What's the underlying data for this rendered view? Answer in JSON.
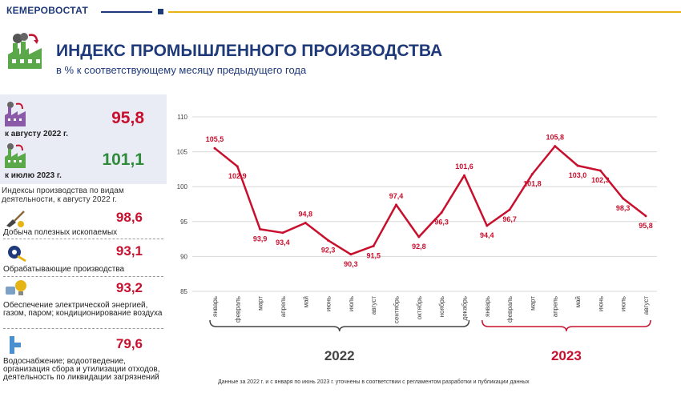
{
  "brand": "КЕМЕРОВОСТАТ",
  "title": "ИНДЕКС ПРОМЫШЛЕННОГО ПРОИЗВОДСТВА",
  "subtitle": "в % к соответствующему месяцу предыдущего года",
  "summary": [
    {
      "label": "к августу 2022 г.",
      "value": "95,8",
      "color": "#c8102e"
    },
    {
      "label": "к июлю 2023 г.",
      "value": "101,1",
      "color": "#2e8b3a"
    }
  ],
  "sectors_note": "Индексы производства по видам деятельности, к августу 2022 г.",
  "sectors": [
    {
      "icon": "mining-shovel-icon",
      "label": "Добыча полезных ископаемых",
      "value": "98,6"
    },
    {
      "icon": "gear-wrench-icon",
      "label": "Обрабатывающие производства",
      "value": "93,1"
    },
    {
      "icon": "lightbulb-gas-icon",
      "label": "Обеспечение электрической энергией, газом, паром; кондиционирование воздуха",
      "value": "93,2"
    },
    {
      "icon": "water-pipe-icon",
      "label": "Водоснабжение; водоотведение, организация сбора и утилизации отходов, деятельность по ликвидации загрязнений",
      "value": "79,6"
    }
  ],
  "footnote": "Данные за 2022 г. и с января по июнь 2023 г. уточнены в соответствии с регламентом разработки и публикации данных",
  "chart_data": {
    "type": "line",
    "categories": [
      "январь",
      "февраль",
      "март",
      "апрель",
      "май",
      "июнь",
      "июль",
      "август",
      "сентябрь",
      "октябрь",
      "ноябрь",
      "декабрь",
      "январь",
      "февраль",
      "март",
      "апрель",
      "май",
      "июнь",
      "июль",
      "август"
    ],
    "series": [
      {
        "values": [
          105.5,
          102.9,
          93.9,
          93.4,
          94.8,
          92.3,
          90.3,
          91.5,
          97.4,
          92.8,
          96.3,
          101.6,
          94.4,
          96.7,
          101.8,
          105.8,
          103.0,
          102.3,
          98.3,
          95.8
        ]
      }
    ],
    "data_labels": [
      "105,5",
      "102,9",
      "93,9",
      "93,4",
      "94,8",
      "92,3",
      "90,3",
      "91,5",
      "97,4",
      "92,8",
      "96,3",
      "101,6",
      "94,4",
      "96,7",
      "101,8",
      "105,8",
      "103,0",
      "102,3",
      "98,3",
      "95,8"
    ],
    "ylim": [
      85,
      110
    ],
    "yticks": [
      85,
      90,
      95,
      100,
      105,
      110
    ],
    "groups": [
      {
        "label": "2022",
        "start": 0,
        "end": 11,
        "color": "#444444"
      },
      {
        "label": "2023",
        "start": 12,
        "end": 19,
        "color": "#c8102e"
      }
    ],
    "line_color": "#c8102e",
    "grid": true
  }
}
